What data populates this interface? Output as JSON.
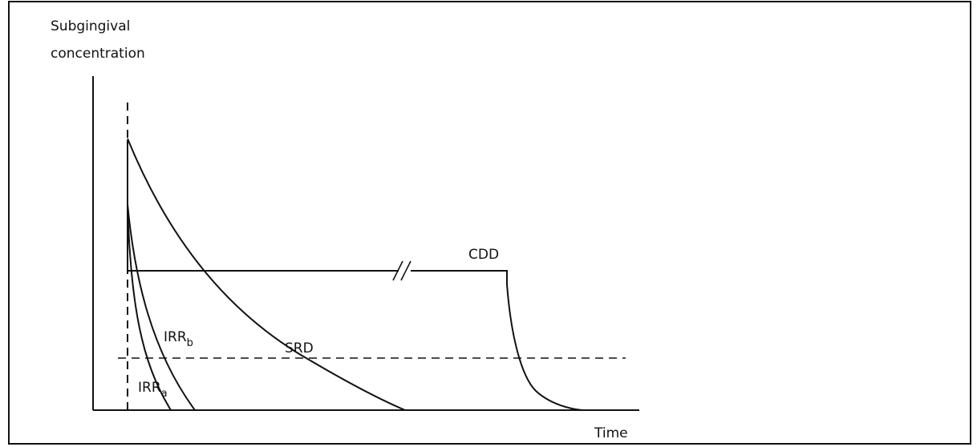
{
  "chart_data": {
    "type": "line",
    "ylabel": [
      "Subgingival",
      "concentration"
    ],
    "xlabel": "Time",
    "curves": [
      {
        "name": "CDD",
        "shape": "plateau-then-decay",
        "has_axis_break": true
      },
      {
        "name": "SRD",
        "shape": "slow-decay"
      },
      {
        "name": "IRR",
        "sub": "b",
        "shape": "fast-decay"
      },
      {
        "name": "IRR",
        "sub": "a",
        "shape": "fastest-decay"
      }
    ],
    "reference_lines": [
      "vertical-dashed-at-start",
      "horizontal-dashed-threshold"
    ],
    "ticks": false,
    "grid": false,
    "legend": "none",
    "colors": {
      "ink": "#111111",
      "background": "#ffffff"
    }
  }
}
